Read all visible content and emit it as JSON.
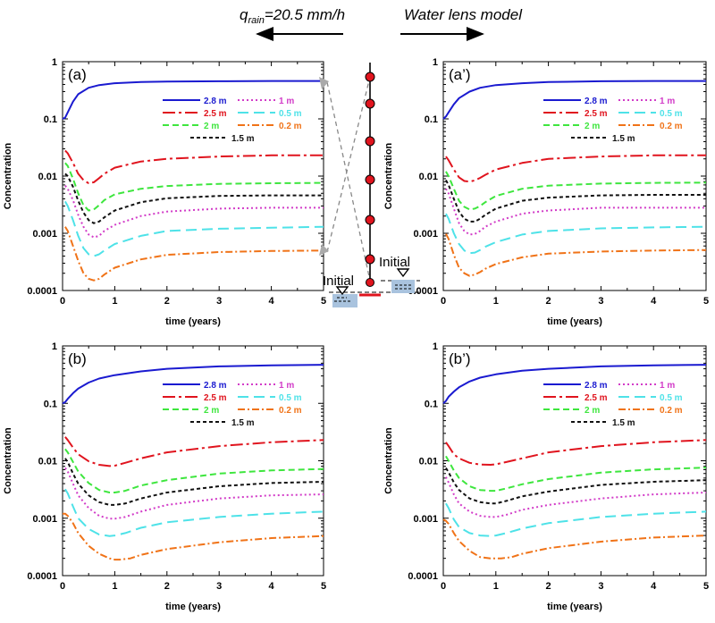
{
  "header": {
    "left_label": "q",
    "left_sub": "rain",
    "left_value": "=20.5 mm/h",
    "right_label": "Water lens model"
  },
  "diagram": {
    "initial_left": "Initial",
    "initial_right": "Initial"
  },
  "colors": {
    "2.8 m": "#1a1ad0",
    "2.5 m": "#e0141e",
    "2 m": "#3ee63e",
    "1.5 m": "#111111",
    "1 m": "#d23cc8",
    "0.5 m": "#4ee2e8",
    "0.2 m": "#f07318",
    "marker": "#e0141e",
    "water": "#a9c3de"
  },
  "chart_data": [
    {
      "id": "a",
      "panel_label": "(a)",
      "type": "line",
      "xlabel": "time (years)",
      "ylabel": "Concentration",
      "xlim": [
        0,
        5
      ],
      "ylim": [
        0.0001,
        1
      ],
      "yscale": "log",
      "xticks": [
        "0",
        "1",
        "2",
        "3",
        "4",
        "5"
      ],
      "yticks": [
        "0.0001",
        "0.001",
        "0.01",
        "0.1",
        "1"
      ],
      "series": [
        {
          "name": "2.8 m",
          "x": [
            0,
            0.05,
            0.1,
            0.2,
            0.3,
            0.5,
            0.7,
            1,
            1.5,
            2,
            3,
            4,
            5
          ],
          "y": [
            0.1,
            0.105,
            0.13,
            0.2,
            0.27,
            0.35,
            0.39,
            0.42,
            0.44,
            0.45,
            0.455,
            0.46,
            0.46
          ]
        },
        {
          "name": "2.5 m",
          "x": [
            0.05,
            0.1,
            0.2,
            0.3,
            0.4,
            0.5,
            0.6,
            0.7,
            0.8,
            1,
            1.5,
            2,
            3,
            4,
            5
          ],
          "y": [
            0.028,
            0.025,
            0.017,
            0.011,
            0.0085,
            0.0075,
            0.0078,
            0.0092,
            0.011,
            0.014,
            0.018,
            0.02,
            0.022,
            0.023,
            0.023
          ]
        },
        {
          "name": "2 m",
          "x": [
            0.05,
            0.1,
            0.2,
            0.3,
            0.4,
            0.5,
            0.6,
            0.7,
            0.8,
            1,
            1.5,
            2,
            3,
            4,
            5
          ],
          "y": [
            0.017,
            0.015,
            0.009,
            0.005,
            0.0031,
            0.0025,
            0.0026,
            0.0031,
            0.0038,
            0.0048,
            0.006,
            0.0067,
            0.0073,
            0.0075,
            0.0076
          ]
        },
        {
          "name": "1.5 m",
          "x": [
            0.05,
            0.1,
            0.2,
            0.3,
            0.4,
            0.5,
            0.6,
            0.7,
            0.8,
            1,
            1.5,
            2,
            3,
            4,
            5
          ],
          "y": [
            0.011,
            0.01,
            0.0065,
            0.0037,
            0.0023,
            0.0017,
            0.0015,
            0.0016,
            0.0019,
            0.0025,
            0.0035,
            0.0041,
            0.0045,
            0.0046,
            0.0046
          ]
        },
        {
          "name": "1 m",
          "x": [
            0.05,
            0.1,
            0.2,
            0.3,
            0.4,
            0.5,
            0.6,
            0.7,
            0.8,
            1,
            1.5,
            2,
            3,
            4,
            5
          ],
          "y": [
            0.0068,
            0.006,
            0.0038,
            0.0021,
            0.0013,
            0.00095,
            0.00085,
            0.0009,
            0.0011,
            0.0014,
            0.002,
            0.0024,
            0.0027,
            0.0028,
            0.0028
          ]
        },
        {
          "name": "0.5 m",
          "x": [
            0.05,
            0.1,
            0.2,
            0.3,
            0.4,
            0.5,
            0.6,
            0.7,
            0.8,
            1,
            1.5,
            2,
            3,
            4,
            5
          ],
          "y": [
            0.0036,
            0.003,
            0.0017,
            0.0009,
            0.00055,
            0.00043,
            0.0004,
            0.00043,
            0.0005,
            0.00065,
            0.0009,
            0.0011,
            0.0012,
            0.00125,
            0.0013
          ]
        },
        {
          "name": "0.2 m",
          "x": [
            0.05,
            0.1,
            0.2,
            0.3,
            0.4,
            0.5,
            0.6,
            0.7,
            0.8,
            1,
            1.5,
            2,
            3,
            4,
            5
          ],
          "y": [
            0.0013,
            0.0011,
            0.0006,
            0.00033,
            0.0002,
            0.00016,
            0.00015,
            0.00016,
            0.00019,
            0.00025,
            0.00035,
            0.00042,
            0.00047,
            0.00049,
            0.0005
          ]
        }
      ]
    },
    {
      "id": "a2",
      "panel_label": "(a’)",
      "type": "line",
      "xlabel": "time (years)",
      "ylabel": "Concentration",
      "xlim": [
        0,
        5
      ],
      "ylim": [
        0.0001,
        1
      ],
      "yscale": "log",
      "xticks": [
        "0",
        "1",
        "2",
        "3",
        "4",
        "5"
      ],
      "yticks": [
        "0.0001",
        "0.001",
        "0.01",
        "0.1",
        "1"
      ],
      "series": [
        {
          "name": "2.8 m",
          "x": [
            0,
            0.05,
            0.1,
            0.2,
            0.3,
            0.5,
            0.7,
            1,
            1.5,
            2,
            3,
            4,
            5
          ],
          "y": [
            0.1,
            0.11,
            0.13,
            0.18,
            0.23,
            0.3,
            0.35,
            0.39,
            0.42,
            0.44,
            0.455,
            0.46,
            0.46
          ]
        },
        {
          "name": "2.5 m",
          "x": [
            0.05,
            0.1,
            0.2,
            0.3,
            0.4,
            0.5,
            0.6,
            0.7,
            0.8,
            1,
            1.5,
            2,
            3,
            4,
            5
          ],
          "y": [
            0.022,
            0.019,
            0.013,
            0.0095,
            0.0082,
            0.008,
            0.0084,
            0.0093,
            0.0105,
            0.013,
            0.017,
            0.02,
            0.022,
            0.023,
            0.023
          ]
        },
        {
          "name": "2 m",
          "x": [
            0.05,
            0.1,
            0.2,
            0.3,
            0.4,
            0.5,
            0.6,
            0.7,
            0.8,
            1,
            1.5,
            2,
            3,
            4,
            5
          ],
          "y": [
            0.012,
            0.01,
            0.006,
            0.0037,
            0.0029,
            0.0026,
            0.0027,
            0.003,
            0.0035,
            0.0045,
            0.006,
            0.0068,
            0.0074,
            0.0076,
            0.0077
          ]
        },
        {
          "name": "1.5 m",
          "x": [
            0.05,
            0.1,
            0.2,
            0.3,
            0.4,
            0.5,
            0.6,
            0.7,
            0.8,
            1,
            1.5,
            2,
            3,
            4,
            5
          ],
          "y": [
            0.0085,
            0.007,
            0.004,
            0.0024,
            0.0018,
            0.0016,
            0.0016,
            0.0018,
            0.0021,
            0.0027,
            0.0037,
            0.0042,
            0.0046,
            0.0047,
            0.0047
          ]
        },
        {
          "name": "1 m",
          "x": [
            0.05,
            0.1,
            0.2,
            0.3,
            0.4,
            0.5,
            0.6,
            0.7,
            0.8,
            1,
            1.5,
            2,
            3,
            4,
            5
          ],
          "y": [
            0.006,
            0.005,
            0.0027,
            0.0015,
            0.0011,
            0.00095,
            0.00097,
            0.0011,
            0.0013,
            0.0016,
            0.0022,
            0.0025,
            0.0028,
            0.0028,
            0.0028
          ]
        },
        {
          "name": "0.5 m",
          "x": [
            0.05,
            0.1,
            0.2,
            0.3,
            0.4,
            0.5,
            0.6,
            0.7,
            0.8,
            1,
            1.5,
            2,
            3,
            4,
            5
          ],
          "y": [
            0.0022,
            0.0018,
            0.001,
            0.00065,
            0.0005,
            0.00045,
            0.00046,
            0.00051,
            0.00058,
            0.0007,
            0.00095,
            0.0011,
            0.00122,
            0.00127,
            0.0013
          ]
        },
        {
          "name": "0.2 m",
          "x": [
            0.05,
            0.1,
            0.2,
            0.3,
            0.4,
            0.5,
            0.6,
            0.7,
            0.8,
            1,
            1.5,
            2,
            3,
            4,
            5
          ],
          "y": [
            0.00098,
            0.0008,
            0.00042,
            0.00025,
            0.0002,
            0.00018,
            0.00019,
            0.00021,
            0.00024,
            0.00029,
            0.00038,
            0.00044,
            0.00048,
            0.0005,
            0.00051
          ]
        }
      ]
    },
    {
      "id": "b",
      "panel_label": "(b)",
      "type": "line",
      "xlabel": "time (years)",
      "ylabel": "Concentration",
      "xlim": [
        0,
        5
      ],
      "ylim": [
        0.0001,
        1
      ],
      "yscale": "log",
      "xticks": [
        "0",
        "1",
        "2",
        "3",
        "4",
        "5"
      ],
      "yticks": [
        "0.0001",
        "0.001",
        "0.01",
        "0.1",
        "1"
      ],
      "series": [
        {
          "name": "2.8 m",
          "x": [
            0,
            0.05,
            0.1,
            0.2,
            0.3,
            0.5,
            0.7,
            1,
            1.5,
            2,
            3,
            4,
            5
          ],
          "y": [
            0.1,
            0.105,
            0.12,
            0.15,
            0.18,
            0.23,
            0.27,
            0.31,
            0.36,
            0.4,
            0.44,
            0.46,
            0.47
          ]
        },
        {
          "name": "2.5 m",
          "x": [
            0.05,
            0.1,
            0.2,
            0.3,
            0.5,
            0.7,
            0.9,
            1,
            1.2,
            1.5,
            2,
            3,
            4,
            5
          ],
          "y": [
            0.026,
            0.023,
            0.017,
            0.013,
            0.0098,
            0.0085,
            0.0081,
            0.0082,
            0.0092,
            0.011,
            0.014,
            0.018,
            0.021,
            0.023
          ]
        },
        {
          "name": "2 m",
          "x": [
            0.05,
            0.1,
            0.2,
            0.3,
            0.5,
            0.7,
            0.9,
            1,
            1.2,
            1.5,
            2,
            3,
            4,
            5
          ],
          "y": [
            0.016,
            0.014,
            0.0095,
            0.0065,
            0.0041,
            0.0031,
            0.0028,
            0.0028,
            0.003,
            0.0037,
            0.0046,
            0.006,
            0.0068,
            0.0072
          ]
        },
        {
          "name": "1.5 m",
          "x": [
            0.05,
            0.1,
            0.2,
            0.3,
            0.5,
            0.7,
            0.9,
            1,
            1.2,
            1.5,
            2,
            3,
            4,
            5
          ],
          "y": [
            0.011,
            0.0095,
            0.006,
            0.004,
            0.0025,
            0.0019,
            0.0017,
            0.0017,
            0.0018,
            0.0022,
            0.0028,
            0.0036,
            0.0041,
            0.0043
          ]
        },
        {
          "name": "1 m",
          "x": [
            0.05,
            0.1,
            0.2,
            0.3,
            0.5,
            0.7,
            0.9,
            1,
            1.2,
            1.5,
            2,
            3,
            4,
            5
          ],
          "y": [
            0.0075,
            0.0065,
            0.004,
            0.0025,
            0.0015,
            0.0011,
            0.00098,
            0.00098,
            0.00105,
            0.0013,
            0.0017,
            0.0022,
            0.0025,
            0.0026
          ]
        },
        {
          "name": "0.5 m",
          "x": [
            0.05,
            0.1,
            0.2,
            0.3,
            0.5,
            0.7,
            0.9,
            1,
            1.2,
            1.5,
            2,
            3,
            4,
            5
          ],
          "y": [
            0.0032,
            0.0027,
            0.0016,
            0.001,
            0.00065,
            0.00052,
            0.00049,
            0.0005,
            0.00055,
            0.00068,
            0.00085,
            0.00105,
            0.0012,
            0.0013
          ]
        },
        {
          "name": "0.2 m",
          "x": [
            0,
            0.05,
            0.1,
            0.2,
            0.3,
            0.5,
            0.7,
            0.9,
            1,
            1.1,
            1.3,
            1.5,
            2,
            3,
            4,
            5
          ],
          "y": [
            0.0012,
            0.0012,
            0.0011,
            0.00082,
            0.00055,
            0.00033,
            0.00024,
            0.0002,
            0.00019,
            0.00019,
            0.0002,
            0.00023,
            0.00029,
            0.00038,
            0.00045,
            0.00049
          ]
        }
      ]
    },
    {
      "id": "b2",
      "panel_label": "(b’)",
      "type": "line",
      "xlabel": "time (years)",
      "ylabel": "Concentration",
      "xlim": [
        0,
        5
      ],
      "ylim": [
        0.0001,
        1
      ],
      "yscale": "log",
      "xticks": [
        "0",
        "1",
        "2",
        "3",
        "4",
        "5"
      ],
      "yticks": [
        "0.0001",
        "0.001",
        "0.01",
        "0.1",
        "1"
      ],
      "series": [
        {
          "name": "2.8 m",
          "x": [
            0,
            0.05,
            0.1,
            0.2,
            0.3,
            0.5,
            0.7,
            1,
            1.5,
            2,
            3,
            4,
            5
          ],
          "y": [
            0.1,
            0.11,
            0.13,
            0.16,
            0.19,
            0.24,
            0.28,
            0.32,
            0.37,
            0.4,
            0.44,
            0.46,
            0.47
          ]
        },
        {
          "name": "2.5 m",
          "x": [
            0.05,
            0.1,
            0.2,
            0.3,
            0.5,
            0.7,
            0.9,
            1,
            1.2,
            1.5,
            2,
            3,
            4,
            5
          ],
          "y": [
            0.021,
            0.018,
            0.013,
            0.011,
            0.0092,
            0.0086,
            0.0085,
            0.0087,
            0.0095,
            0.011,
            0.014,
            0.018,
            0.021,
            0.023
          ]
        },
        {
          "name": "2 m",
          "x": [
            0.05,
            0.1,
            0.2,
            0.3,
            0.5,
            0.7,
            0.9,
            1,
            1.2,
            1.5,
            2,
            3,
            4,
            5
          ],
          "y": [
            0.012,
            0.01,
            0.0068,
            0.005,
            0.0036,
            0.0031,
            0.003,
            0.003,
            0.0033,
            0.0039,
            0.0048,
            0.0062,
            0.0071,
            0.0076
          ]
        },
        {
          "name": "1.5 m",
          "x": [
            0.05,
            0.1,
            0.2,
            0.3,
            0.5,
            0.7,
            0.9,
            1,
            1.2,
            1.5,
            2,
            3,
            4,
            5
          ],
          "y": [
            0.0075,
            0.0063,
            0.0042,
            0.0031,
            0.0022,
            0.0019,
            0.0018,
            0.0018,
            0.002,
            0.0024,
            0.0029,
            0.0038,
            0.0043,
            0.0046
          ]
        },
        {
          "name": "1 m",
          "x": [
            0.05,
            0.1,
            0.2,
            0.3,
            0.5,
            0.7,
            0.9,
            1,
            1.2,
            1.5,
            2,
            3,
            4,
            5
          ],
          "y": [
            0.0052,
            0.0042,
            0.0026,
            0.0018,
            0.0013,
            0.0011,
            0.00105,
            0.00105,
            0.00115,
            0.0014,
            0.0017,
            0.0022,
            0.0026,
            0.0028
          ]
        },
        {
          "name": "0.5 m",
          "x": [
            0.05,
            0.1,
            0.2,
            0.3,
            0.5,
            0.7,
            0.9,
            1,
            1.2,
            1.5,
            2,
            3,
            4,
            5
          ],
          "y": [
            0.0018,
            0.0015,
            0.00095,
            0.0007,
            0.00055,
            0.0005,
            0.00049,
            0.0005,
            0.00055,
            0.00066,
            0.00082,
            0.00105,
            0.0012,
            0.0013
          ]
        },
        {
          "name": "0.2 m",
          "x": [
            0,
            0.05,
            0.1,
            0.2,
            0.3,
            0.5,
            0.7,
            0.9,
            1,
            1.1,
            1.3,
            1.5,
            2,
            3,
            4,
            5
          ],
          "y": [
            0.00095,
            0.0009,
            0.0008,
            0.00055,
            0.0004,
            0.00027,
            0.00021,
            0.0002,
            0.0002,
            0.0002,
            0.00021,
            0.00024,
            0.0003,
            0.00039,
            0.00046,
            0.0005
          ]
        }
      ]
    }
  ]
}
